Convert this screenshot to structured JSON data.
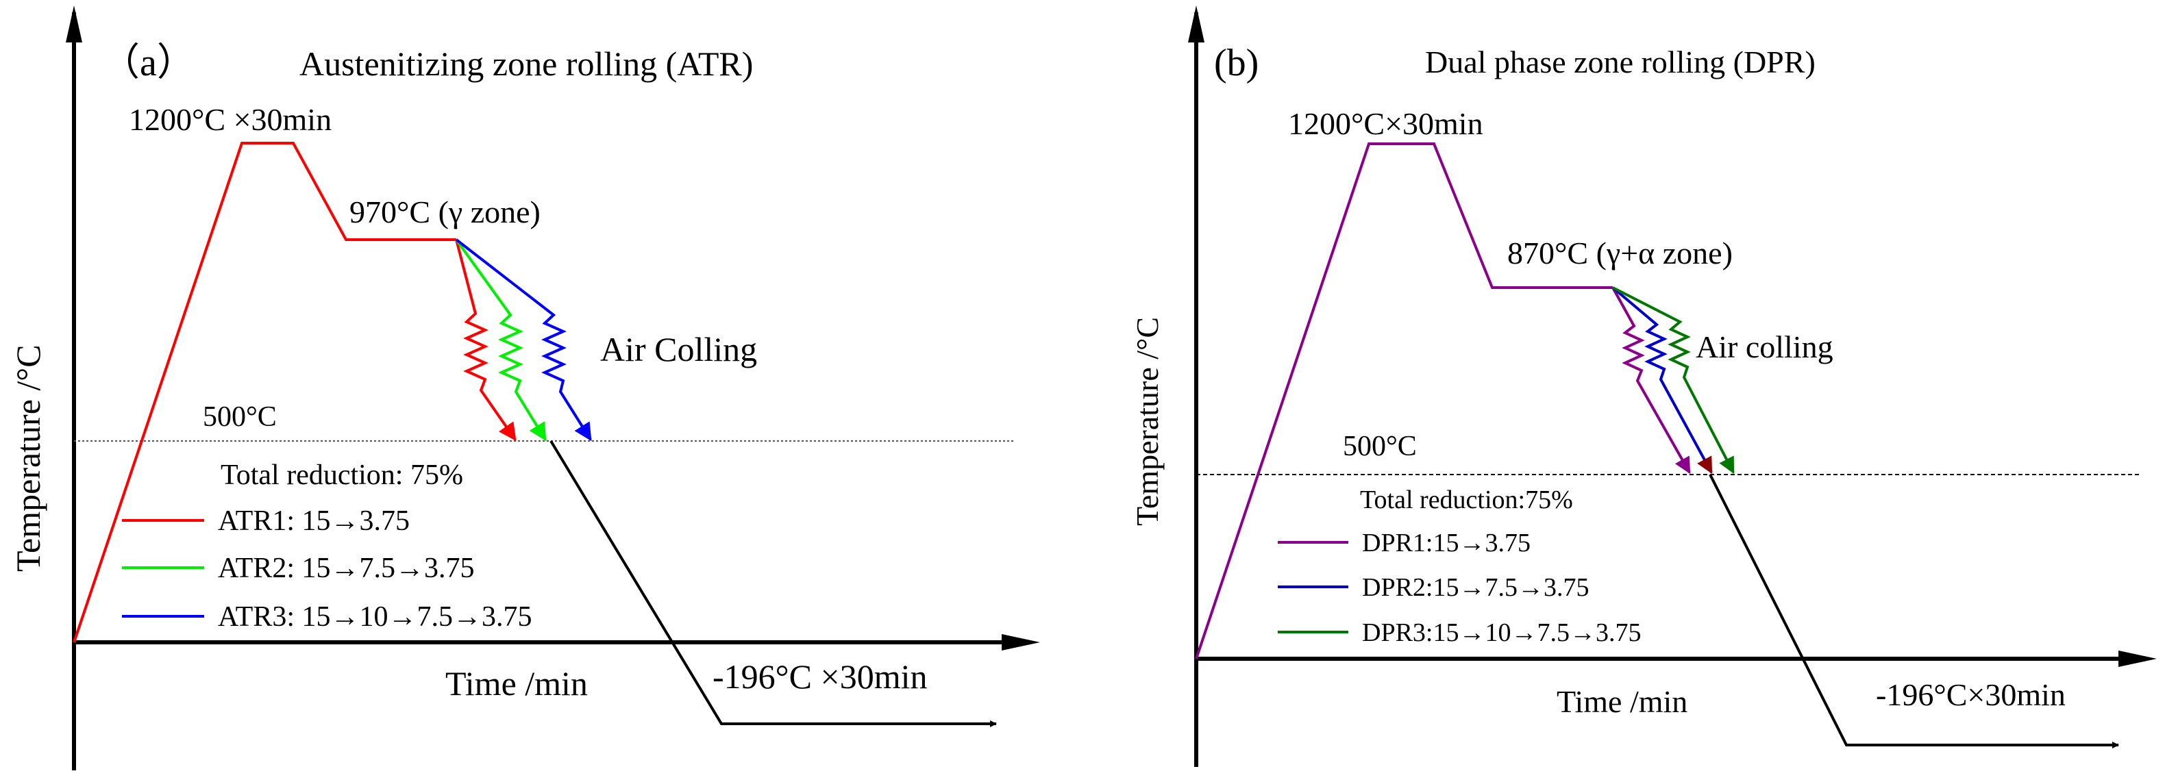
{
  "panels": [
    {
      "id": "a",
      "label": "（a）",
      "title": "Austenitizing zone rolling (ATR)",
      "y_axis_label": "Temperature /°C",
      "x_axis_label": "Time /min",
      "heat_label": "1200°C ×30min",
      "hold_label": "970°C  (γ zone)",
      "cooling_label": "Air Colling",
      "line500_label": "500°C",
      "cryo_label": "-196°C  ×30min",
      "legend_title": "Total reduction: 75%",
      "legend": [
        {
          "label": "ATR1: 15→3.75",
          "color": "#ff0000"
        },
        {
          "label": "ATR2: 15→7.5→3.75",
          "color": "#00ee00"
        },
        {
          "label": "ATR3: 15→10→7.5→3.75",
          "color": "#0000ff"
        }
      ]
    },
    {
      "id": "b",
      "label": "(b)",
      "title": "Dual phase zone rolling (DPR)",
      "y_axis_label": "Temperature /°C",
      "x_axis_label": "Time /min",
      "heat_label": "1200°C×30min",
      "hold_label": "870°C (γ+α zone)",
      "cooling_label": "Air colling",
      "line500_label": "500°C",
      "cryo_label": "-196°C×30min",
      "legend_title": "Total reduction:75%",
      "legend": [
        {
          "label": "DPR1:15→3.75",
          "color": "#8b008b"
        },
        {
          "label": "DPR2:15→7.5→3.75",
          "color": "#0000cc"
        },
        {
          "label": "DPR3:15→10→7.5→3.75",
          "color": "#007700"
        }
      ]
    }
  ],
  "colors": {
    "axis": "#000000",
    "path": "#000000",
    "dotted_line": "#555555"
  }
}
